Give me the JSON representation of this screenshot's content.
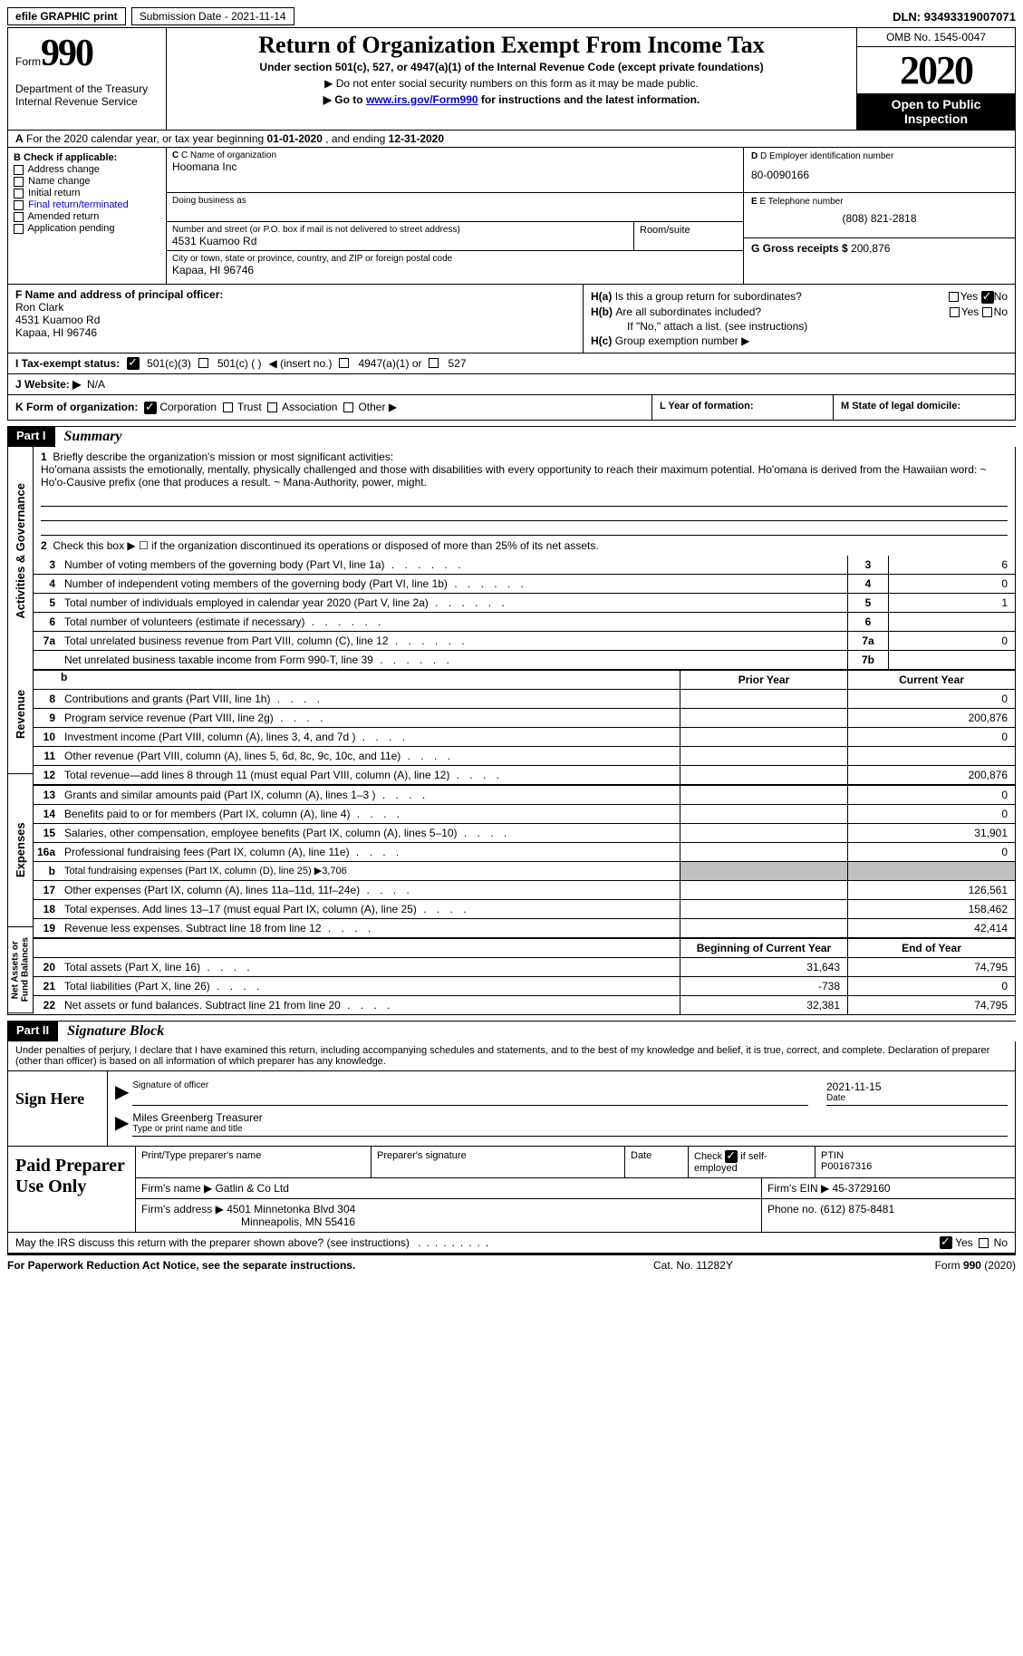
{
  "topbar": {
    "efile": "efile GRAPHIC print",
    "subdate_label": "Submission Date - ",
    "subdate": "2021-11-14",
    "dln_label": "DLN: ",
    "dln": "93493319007071"
  },
  "header": {
    "form_label": "Form",
    "form_num": "990",
    "dept": "Department of the Treasury\nInternal Revenue Service",
    "title": "Return of Organization Exempt From Income Tax",
    "subtitle": "Under section 501(c), 527, or 4947(a)(1) of the Internal Revenue Code (except private foundations)",
    "note1_prefix": "▶ Do not enter social security numbers on this form as it may be made public.",
    "note2_prefix": "▶ Go to ",
    "note2_link": "www.irs.gov/Form990",
    "note2_suffix": " for instructions and the latest information.",
    "omb": "OMB No. 1545-0047",
    "year": "2020",
    "open_public": "Open to Public Inspection"
  },
  "sectionA": {
    "prefix": "A",
    "text": "For the 2020 calendar year, or tax year beginning ",
    "begin": "01-01-2020",
    "mid": "  , and ending ",
    "end": "12-31-2020"
  },
  "colB": {
    "header": "B Check if applicable:",
    "items": [
      "Address change",
      "Name change",
      "Initial return",
      "Final return/terminated",
      "Amended return",
      "Application pending"
    ]
  },
  "colC": {
    "name_label": "C Name of organization",
    "name": "Hoomana Inc",
    "dba_label": "Doing business as",
    "dba": "",
    "addr_label": "Number and street (or P.O. box if mail is not delivered to street address)",
    "addr": "4531 Kuamoo Rd",
    "room_label": "Room/suite",
    "city_label": "City or town, state or province, country, and ZIP or foreign postal code",
    "city": "Kapaa, HI  96746"
  },
  "colD": {
    "ein_label": "D Employer identification number",
    "ein": "80-0090166",
    "phone_label": "E Telephone number",
    "phone": "(808) 821-2818",
    "gross_label": "G Gross receipts $ ",
    "gross": "200,876"
  },
  "boxF": {
    "label": "F  Name and address of principal officer:",
    "name": "Ron Clark",
    "addr1": "4531 Kuamoo Rd",
    "addr2": "Kapaa, HI  96746"
  },
  "boxH": {
    "a_label": "Is this a group return for subordinates?",
    "a_prefix": "H(a)",
    "b_label": "Are all subordinates included?",
    "b_prefix": "H(b)",
    "b_note": "If \"No,\" attach a list. (see instructions)",
    "c_prefix": "H(c)",
    "c_label": "Group exemption number ▶",
    "yes": "Yes",
    "no": "No"
  },
  "status": {
    "i_label": "I  Tax-exempt status:",
    "opt1": "501(c)(3)",
    "opt2": "501(c) (  )",
    "opt2_note": "◀ (insert no.)",
    "opt3": "4947(a)(1) or",
    "opt4": "527"
  },
  "website": {
    "j_label": "J  Website: ▶",
    "value": "N/A"
  },
  "rowK": {
    "label": "K Form of organization:",
    "opts": [
      "Corporation",
      "Trust",
      "Association",
      "Other ▶"
    ]
  },
  "rowL": {
    "label": "L Year of formation:"
  },
  "rowM": {
    "label": "M State of legal domicile:"
  },
  "part1": {
    "num": "Part I",
    "title": "Summary",
    "sections": {
      "governance": "Activities & Governance",
      "revenue": "Revenue",
      "expenses": "Expenses",
      "netassets": "Net Assets or Fund Balances"
    },
    "line1_num": "1",
    "line1": "Briefly describe the organization's mission or most significant activities:",
    "mission": "Ho'omana assists the emotionally, mentally, physically challenged and those with disabilities with every opportunity to reach their maximum potential. Ho'omana is derived from the Hawaiian word: ~ Ho'o-Causive prefix (one that produces a result. ~ Mana-Authority, power, might.",
    "line2_num": "2",
    "line2": "Check this box ▶ ☐  if the organization discontinued its operations or disposed of more than 25% of its net assets.",
    "rows_gov": [
      {
        "n": "3",
        "d": "Number of voting members of the governing body (Part VI, line 1a)",
        "box": "3",
        "v": "6"
      },
      {
        "n": "4",
        "d": "Number of independent voting members of the governing body (Part VI, line 1b)",
        "box": "4",
        "v": "0"
      },
      {
        "n": "5",
        "d": "Total number of individuals employed in calendar year 2020 (Part V, line 2a)",
        "box": "5",
        "v": "1"
      },
      {
        "n": "6",
        "d": "Total number of volunteers (estimate if necessary)",
        "box": "6",
        "v": ""
      },
      {
        "n": "7a",
        "d": "Total unrelated business revenue from Part VIII, column (C), line 12",
        "box": "7a",
        "v": "0"
      },
      {
        "n": "",
        "d": "Net unrelated business taxable income from Form 990-T, line 39",
        "box": "7b",
        "v": ""
      }
    ],
    "hdr_prior": "Prior Year",
    "hdr_curr": "Current Year",
    "hdr_begin": "Beginning of Current Year",
    "hdr_end": "End of Year",
    "rows_rev": [
      {
        "n": "8",
        "d": "Contributions and grants (Part VIII, line 1h)",
        "p": "",
        "c": "0"
      },
      {
        "n": "9",
        "d": "Program service revenue (Part VIII, line 2g)",
        "p": "",
        "c": "200,876"
      },
      {
        "n": "10",
        "d": "Investment income (Part VIII, column (A), lines 3, 4, and 7d )",
        "p": "",
        "c": "0"
      },
      {
        "n": "11",
        "d": "Other revenue (Part VIII, column (A), lines 5, 6d, 8c, 9c, 10c, and 11e)",
        "p": "",
        "c": ""
      },
      {
        "n": "12",
        "d": "Total revenue—add lines 8 through 11 (must equal Part VIII, column (A), line 12)",
        "p": "",
        "c": "200,876"
      }
    ],
    "rows_exp": [
      {
        "n": "13",
        "d": "Grants and similar amounts paid (Part IX, column (A), lines 1–3 )",
        "p": "",
        "c": "0"
      },
      {
        "n": "14",
        "d": "Benefits paid to or for members (Part IX, column (A), line 4)",
        "p": "",
        "c": "0"
      },
      {
        "n": "15",
        "d": "Salaries, other compensation, employee benefits (Part IX, column (A), lines 5–10)",
        "p": "",
        "c": "31,901"
      },
      {
        "n": "16a",
        "d": "Professional fundraising fees (Part IX, column (A), line 11e)",
        "p": "",
        "c": "0"
      },
      {
        "n": "b",
        "d": "Total fundraising expenses (Part IX, column (D), line 25) ▶3,706",
        "grey": true
      },
      {
        "n": "17",
        "d": "Other expenses (Part IX, column (A), lines 11a–11d, 11f–24e)",
        "p": "",
        "c": "126,561"
      },
      {
        "n": "18",
        "d": "Total expenses. Add lines 13–17 (must equal Part IX, column (A), line 25)",
        "p": "",
        "c": "158,462"
      },
      {
        "n": "19",
        "d": "Revenue less expenses. Subtract line 18 from line 12",
        "p": "",
        "c": "42,414"
      }
    ],
    "rows_net": [
      {
        "n": "20",
        "d": "Total assets (Part X, line 16)",
        "p": "31,643",
        "c": "74,795"
      },
      {
        "n": "21",
        "d": "Total liabilities (Part X, line 26)",
        "p": "-738",
        "c": "0"
      },
      {
        "n": "22",
        "d": "Net assets or fund balances. Subtract line 21 from line 20",
        "p": "32,381",
        "c": "74,795"
      }
    ]
  },
  "part2": {
    "num": "Part II",
    "title": "Signature Block",
    "penalty": "Under penalties of perjury, I declare that I have examined this return, including accompanying schedules and statements, and to the best of my knowledge and belief, it is true, correct, and complete. Declaration of preparer (other than officer) is based on all information of which preparer has any knowledge.",
    "sign_here": "Sign Here",
    "sig_officer_label": "Signature of officer",
    "sig_date": "2021-11-15",
    "sig_date_label": "Date",
    "officer_name": "Miles Greenberg Treasurer",
    "officer_name_label": "Type or print name and title",
    "paid_prep": "Paid Preparer Use Only",
    "prep_name_label": "Print/Type preparer's name",
    "prep_sig_label": "Preparer's signature",
    "prep_date_label": "Date",
    "prep_check_label": "Check ☑ if self-employed",
    "prep_ptin_label": "PTIN",
    "prep_ptin": "P00167316",
    "firm_name_label": "Firm's name    ▶ ",
    "firm_name": "Gatlin & Co Ltd",
    "firm_ein_label": "Firm's EIN ▶ ",
    "firm_ein": "45-3729160",
    "firm_addr_label": "Firm's address ▶ ",
    "firm_addr1": "4501 Minnetonka Blvd 304",
    "firm_addr2": "Minneapolis, MN  55416",
    "firm_phone_label": "Phone no. ",
    "firm_phone": "(612) 875-8481",
    "discuss": "May the IRS discuss this return with the preparer shown above? (see instructions)"
  },
  "footer": {
    "left": "For Paperwork Reduction Act Notice, see the separate instructions.",
    "mid": "Cat. No. 11282Y",
    "right_prefix": "Form ",
    "right_form": "990",
    "right_suffix": " (2020)"
  }
}
